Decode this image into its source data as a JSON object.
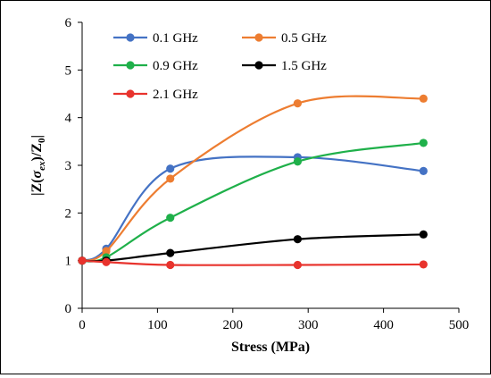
{
  "chart_data": {
    "type": "line",
    "xlabel": "Stress (MPa)",
    "ylabel_parts": [
      "|Z(",
      "σ",
      "ex",
      ")/Z",
      "0",
      "|"
    ],
    "xlim": [
      0,
      500
    ],
    "ylim": [
      0,
      6
    ],
    "xticks": [
      0,
      100,
      200,
      300,
      400,
      500
    ],
    "yticks": [
      0,
      1,
      2,
      3,
      4,
      5,
      6
    ],
    "grid": false,
    "legend_position": "top, inside plot area, 2 columns",
    "series": [
      {
        "name": "0.1 GHz",
        "color": "#4472C4",
        "x": [
          0,
          32,
          117,
          286,
          453
        ],
        "y": [
          1.0,
          1.25,
          2.93,
          3.17,
          2.88
        ]
      },
      {
        "name": "0.5 GHz",
        "color": "#ED7D31",
        "x": [
          0,
          32,
          117,
          286,
          453
        ],
        "y": [
          1.0,
          1.2,
          2.72,
          4.3,
          4.4
        ]
      },
      {
        "name": "0.9 GHz",
        "color": "#1FB04A",
        "x": [
          0,
          32,
          117,
          286,
          453
        ],
        "y": [
          1.0,
          1.07,
          1.9,
          3.08,
          3.47
        ]
      },
      {
        "name": "1.5 GHz",
        "color": "#000000",
        "x": [
          0,
          32,
          117,
          286,
          453
        ],
        "y": [
          1.0,
          1.0,
          1.16,
          1.45,
          1.55
        ]
      },
      {
        "name": "2.1 GHz",
        "color": "#E8332D",
        "x": [
          0,
          32,
          117,
          286,
          453
        ],
        "y": [
          1.0,
          0.97,
          0.91,
          0.91,
          0.92
        ]
      }
    ]
  }
}
